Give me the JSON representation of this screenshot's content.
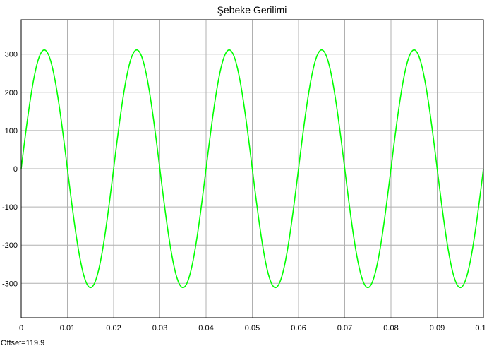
{
  "chart_data": {
    "type": "line",
    "title": "Şebeke Gerilimi",
    "xlabel": "",
    "ylabel": "",
    "xlim": [
      0,
      0.1
    ],
    "ylim": [
      -390,
      390
    ],
    "x_ticks": [
      0,
      0.01,
      0.02,
      0.03,
      0.04,
      0.05,
      0.06,
      0.07,
      0.08,
      0.09,
      0.1
    ],
    "x_tick_labels": [
      "0",
      "0.01",
      "0.02",
      "0.03",
      "0.04",
      "0.05",
      "0.06",
      "0.07",
      "0.08",
      "0.09",
      "0.1"
    ],
    "y_ticks": [
      300,
      200,
      100,
      0,
      -100,
      -200,
      -300
    ],
    "y_tick_labels": [
      "300",
      "200",
      "100",
      "0",
      "-100",
      "-200",
      "-300"
    ],
    "grid": true,
    "series": [
      {
        "color": "#00ff00",
        "amplitude": 311,
        "frequency_hz": 50,
        "phase_deg": 0,
        "waveform": "sine"
      }
    ],
    "annotation": "Offset=119.9",
    "colors": {
      "background": "#ffffff",
      "grid": "#b0b0b0",
      "axes": "#000000",
      "signal": "#00ff00"
    }
  }
}
